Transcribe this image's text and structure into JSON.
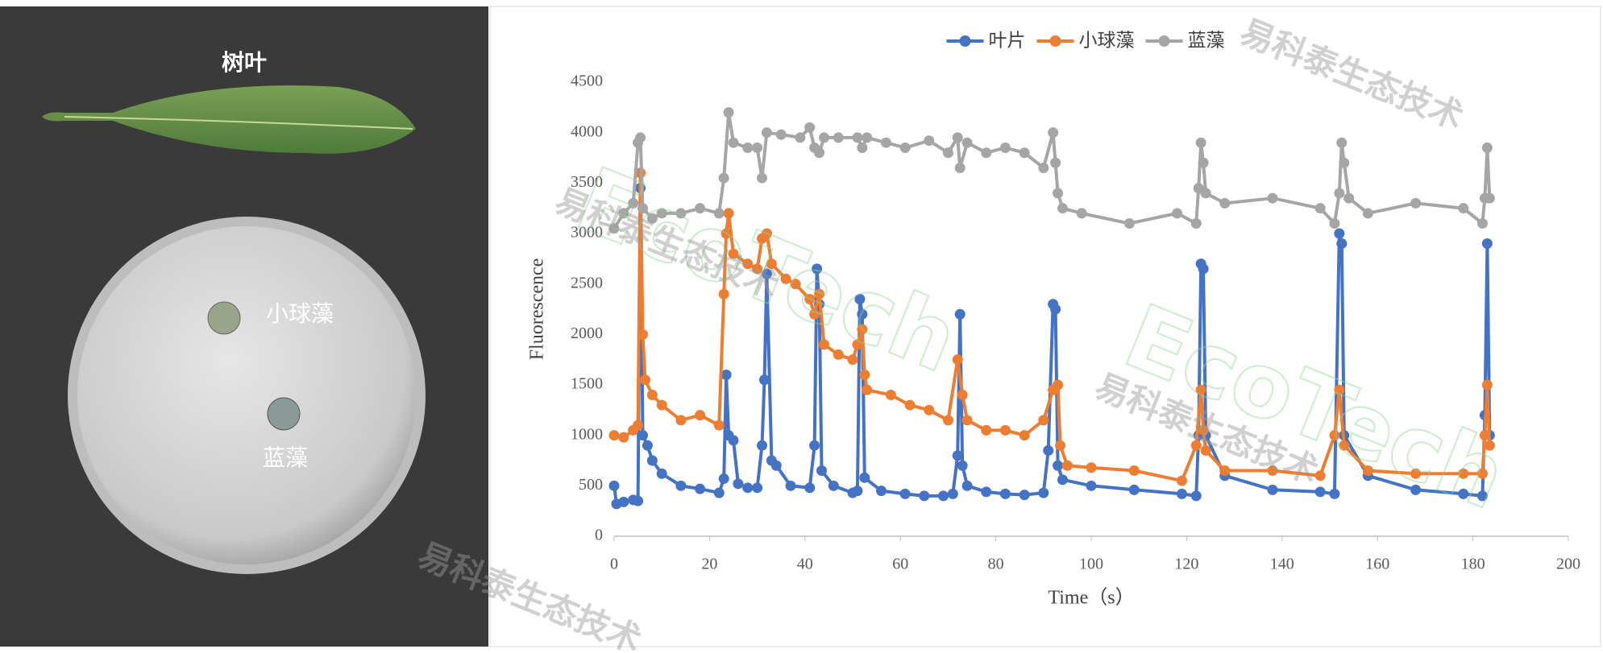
{
  "photo": {
    "labels": [
      "树叶",
      "小球藻",
      "蓝藻"
    ]
  },
  "watermark": {
    "brand": "EcoTech",
    "company": "易科泰生态技术"
  },
  "chart_data": {
    "type": "line",
    "x_label": "Time（s）",
    "y_label": "Fluorescence",
    "xlim": [
      0,
      200
    ],
    "xticks": [
      0,
      20,
      40,
      60,
      80,
      100,
      120,
      140,
      160,
      180,
      200
    ],
    "ylim": [
      0,
      4500
    ],
    "yticks": [
      0,
      500,
      1000,
      1500,
      2000,
      2500,
      3000,
      3500,
      4000,
      4500
    ],
    "grid": false,
    "legend": "top",
    "series": [
      {
        "name": "叶片",
        "color": "#4472c4",
        "x": [
          0,
          0.5,
          2,
          4,
          5,
          5.5,
          6,
          7,
          8,
          10,
          14,
          18,
          22,
          23,
          23.5,
          24,
          25,
          26,
          28,
          30,
          31,
          31.5,
          32,
          33,
          34,
          37,
          41,
          42,
          42.5,
          43,
          43.5,
          46,
          50,
          51,
          51.5,
          52,
          52.5,
          56,
          61,
          65,
          69,
          71,
          72,
          72.5,
          73,
          74,
          78,
          82,
          86,
          90,
          91,
          92,
          92.5,
          93,
          94,
          100,
          109,
          119,
          122,
          122.5,
          123,
          123.5,
          124,
          128,
          138,
          148,
          151,
          152,
          152.5,
          153,
          158,
          168,
          178,
          182,
          182.5,
          183,
          183.5
        ],
        "values": [
          500,
          320,
          340,
          360,
          350,
          3450,
          1000,
          900,
          750,
          620,
          500,
          470,
          430,
          570,
          1600,
          1000,
          950,
          520,
          480,
          480,
          900,
          1550,
          2600,
          750,
          700,
          500,
          480,
          900,
          2650,
          2300,
          650,
          500,
          430,
          450,
          2350,
          2200,
          580,
          450,
          420,
          400,
          400,
          420,
          800,
          2200,
          700,
          500,
          440,
          420,
          410,
          430,
          850,
          2300,
          2250,
          700,
          560,
          500,
          460,
          420,
          400,
          1000,
          2700,
          2650,
          1000,
          600,
          460,
          440,
          420,
          3000,
          2900,
          1000,
          600,
          460,
          420,
          400,
          1200,
          2900,
          1000
        ]
      },
      {
        "name": "小球藻",
        "color": "#ed7d31",
        "x": [
          0,
          2,
          4,
          5,
          5.5,
          6,
          6.5,
          8,
          10,
          14,
          18,
          22,
          23,
          23.5,
          24,
          25,
          28,
          30,
          31,
          32,
          33,
          36,
          38,
          41,
          42,
          43,
          44,
          47,
          50,
          51,
          52,
          52.5,
          53,
          58,
          62,
          66,
          70,
          72,
          73,
          74,
          78,
          82,
          86,
          90,
          92,
          93,
          93.5,
          95,
          100,
          109,
          119,
          122,
          123,
          123.5,
          124,
          128,
          138,
          148,
          151,
          152,
          153,
          158,
          168,
          178,
          182,
          182.5,
          183,
          183.5
        ],
        "values": [
          1000,
          980,
          1050,
          1100,
          3600,
          2000,
          1550,
          1400,
          1300,
          1150,
          1200,
          1100,
          2400,
          3000,
          3200,
          2800,
          2700,
          2650,
          2950,
          3000,
          2700,
          2550,
          2500,
          2350,
          2200,
          2400,
          1900,
          1800,
          1750,
          1900,
          2050,
          1600,
          1450,
          1400,
          1300,
          1250,
          1150,
          1750,
          1400,
          1150,
          1050,
          1050,
          1000,
          1150,
          1450,
          1500,
          900,
          700,
          680,
          650,
          550,
          900,
          1450,
          1050,
          850,
          650,
          650,
          600,
          1000,
          1450,
          900,
          650,
          620,
          620,
          620,
          1000,
          1500,
          900
        ]
      },
      {
        "name": "蓝藻",
        "color": "#a5a5a5",
        "x": [
          0,
          2,
          4,
          5,
          5.5,
          6,
          8,
          10,
          14,
          18,
          22,
          23,
          24,
          25,
          28,
          30,
          31,
          32,
          35,
          39,
          41,
          42,
          43,
          44,
          47,
          51,
          52,
          53,
          57,
          61,
          66,
          70,
          72,
          72.5,
          74,
          78,
          82,
          86,
          90,
          92,
          92.5,
          93,
          94,
          98,
          108,
          118,
          122,
          122.5,
          123,
          123.5,
          124,
          128,
          138,
          148,
          151,
          152,
          152.5,
          153,
          154,
          158,
          168,
          178,
          182,
          182.5,
          183,
          183.5
        ],
        "values": [
          3050,
          3200,
          3300,
          3900,
          3950,
          3250,
          3150,
          3200,
          3200,
          3250,
          3200,
          3550,
          4200,
          3900,
          3850,
          3850,
          3550,
          4000,
          3980,
          3950,
          4050,
          3850,
          3800,
          3950,
          3950,
          3950,
          3850,
          3950,
          3900,
          3850,
          3920,
          3800,
          3950,
          3650,
          3900,
          3800,
          3850,
          3800,
          3650,
          4000,
          3700,
          3400,
          3250,
          3200,
          3100,
          3200,
          3100,
          3450,
          3900,
          3700,
          3400,
          3300,
          3350,
          3250,
          3100,
          3400,
          3900,
          3700,
          3350,
          3200,
          3300,
          3250,
          3100,
          3350,
          3850,
          3350
        ]
      }
    ]
  }
}
